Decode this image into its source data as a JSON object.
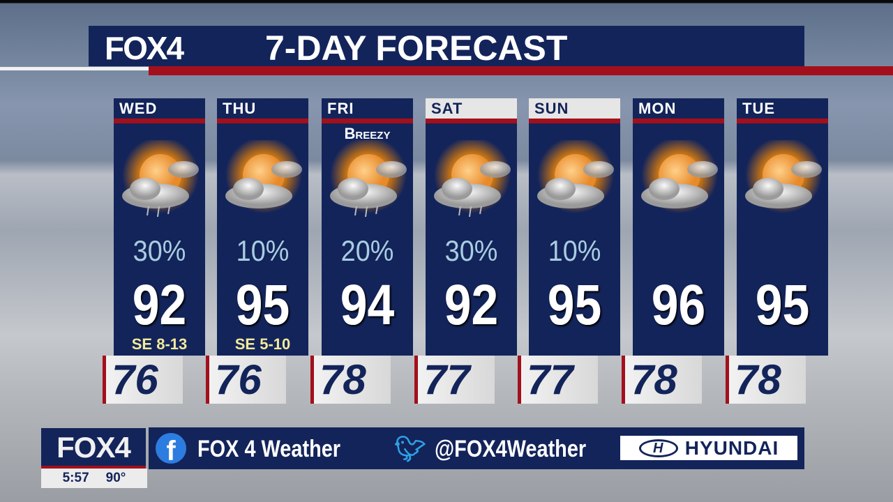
{
  "header": {
    "logo": "FOX4",
    "title": "7-DAY FORECAST"
  },
  "colors": {
    "navy": "#13245a",
    "red": "#a3101c",
    "precip": "#a9cde0",
    "wind": "#f3ea9a"
  },
  "days": [
    {
      "day": "WED",
      "note": "",
      "icon": "partly-sunny-rain-icon",
      "precip": "30%",
      "high": "92",
      "wind": "SE 8-13",
      "low": "76",
      "weekend": false
    },
    {
      "day": "THU",
      "note": "",
      "icon": "partly-sunny-icon",
      "precip": "10%",
      "high": "95",
      "wind": "SE 5-10",
      "low": "76",
      "weekend": false
    },
    {
      "day": "FRI",
      "note": "Breezy",
      "icon": "partly-sunny-rain-icon",
      "precip": "20%",
      "high": "94",
      "wind": "",
      "low": "78",
      "weekend": false
    },
    {
      "day": "SAT",
      "note": "",
      "icon": "partly-sunny-rain-icon",
      "precip": "30%",
      "high": "92",
      "wind": "",
      "low": "77",
      "weekend": true
    },
    {
      "day": "SUN",
      "note": "",
      "icon": "partly-sunny-icon",
      "precip": "10%",
      "high": "95",
      "wind": "",
      "low": "77",
      "weekend": true
    },
    {
      "day": "MON",
      "note": "",
      "icon": "partly-sunny-icon",
      "precip": "",
      "high": "96",
      "wind": "",
      "low": "78",
      "weekend": false
    },
    {
      "day": "TUE",
      "note": "",
      "icon": "partly-sunny-icon",
      "precip": "",
      "high": "95",
      "wind": "",
      "low": "78",
      "weekend": false
    }
  ],
  "footer": {
    "logo": "FOX4",
    "time": "5:57",
    "temp": "90°",
    "facebook": "FOX 4 Weather",
    "twitter": "@FOX4Weather",
    "sponsor": "HYUNDAI",
    "sponsor_mark": "H"
  }
}
